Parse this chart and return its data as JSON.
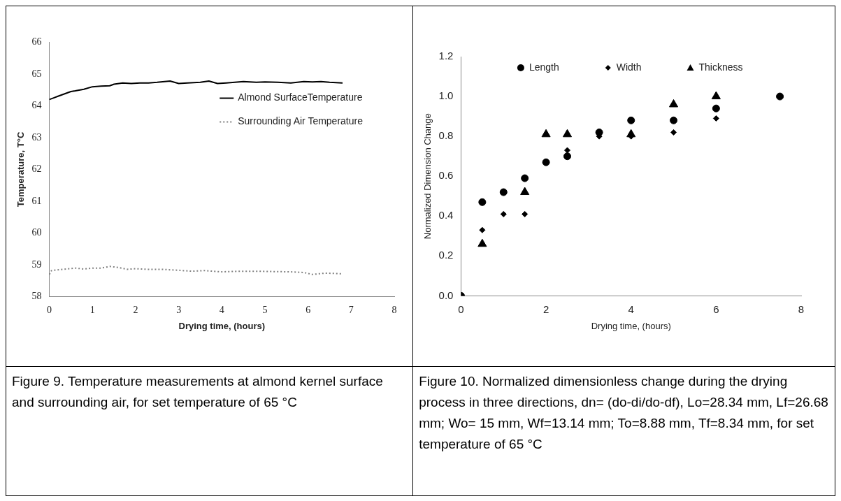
{
  "chart_data": [
    {
      "type": "line",
      "xlabel": "Drying time, (hours)",
      "ylabel": "Temperature, T°C",
      "xlim": [
        0,
        8
      ],
      "xticks": [
        0,
        1,
        2,
        3,
        4,
        5,
        6,
        7,
        8
      ],
      "ylim": [
        58,
        66
      ],
      "yticks": [
        58,
        59,
        60,
        61,
        62,
        63,
        64,
        65,
        66
      ],
      "grid": false,
      "legend": "top right",
      "annotations": [
        "Figure 9. Temperature measurements at almond kernel surface and surrounding air, for set temperature of 65 °C"
      ],
      "series": [
        {
          "name": "Almond SurfaceTemperature",
          "color": "#000000",
          "x": [
            0,
            0.1,
            0.2,
            0.3,
            0.5,
            0.6,
            0.8,
            1.0,
            1.2,
            1.4,
            1.5,
            1.7,
            1.9,
            2.1,
            2.3,
            2.5,
            2.8,
            3.0,
            3.2,
            3.5,
            3.7,
            3.9,
            4.1,
            4.3,
            4.5,
            4.8,
            5.0,
            5.3,
            5.6,
            5.9,
            6.1,
            6.3,
            6.5,
            6.8
          ],
          "values": [
            64.2,
            64.25,
            64.3,
            64.35,
            64.45,
            64.47,
            64.52,
            64.6,
            64.62,
            64.63,
            64.68,
            64.72,
            64.7,
            64.72,
            64.72,
            64.74,
            64.78,
            64.7,
            64.72,
            64.74,
            64.78,
            64.7,
            64.72,
            64.74,
            64.76,
            64.74,
            64.75,
            64.74,
            64.72,
            64.76,
            64.75,
            64.76,
            64.74,
            64.72
          ],
          "line_style": "solid"
        },
        {
          "name": "Surrounding Air Temperature",
          "color": "#808080",
          "x": [
            0,
            0.05,
            0.3,
            0.6,
            0.8,
            1.0,
            1.2,
            1.4,
            1.6,
            1.8,
            2.0,
            2.3,
            2.6,
            3.0,
            3.3,
            3.6,
            4.0,
            4.4,
            4.8,
            5.2,
            5.6,
            5.9,
            6.1,
            6.4,
            6.8
          ],
          "values": [
            58.7,
            58.82,
            58.86,
            58.9,
            58.87,
            58.9,
            58.9,
            58.95,
            58.92,
            58.86,
            58.88,
            58.86,
            58.86,
            58.83,
            58.8,
            58.82,
            58.78,
            58.8,
            58.8,
            58.79,
            58.78,
            58.76,
            58.7,
            58.74,
            58.72
          ],
          "line_style": "dotted"
        }
      ]
    },
    {
      "type": "scatter",
      "xlabel": "Drying time, (hours)",
      "ylabel": "Normalized Dimension Change",
      "xlim": [
        0,
        8
      ],
      "xticks": [
        0,
        2,
        4,
        6,
        8
      ],
      "ylim": [
        0,
        1.2
      ],
      "yticks": [
        {
          "value": 0,
          "label": "0.0"
        },
        0.2,
        0.4,
        0.6,
        0.8,
        {
          "value": 1,
          "label": "1.0"
        },
        1.2
      ],
      "grid": false,
      "legend": "top",
      "annotations": [
        "Figure 10. Normalized dimensionless change during the drying process in three directions, dn= (do-di/do-df), Lo=28.34 mm, Lf=26.68 mm; Wo= 15 mm, Wf=13.14 mm; To=8.88 mm, Tf=8.34 mm, for set temperature of 65 °C"
      ],
      "series": [
        {
          "name": "Length",
          "color": "#000000",
          "marker": "circle",
          "x": [
            0,
            0.5,
            1,
            1.5,
            2,
            2.5,
            3.25,
            4,
            5,
            6,
            7.5
          ],
          "values": [
            0,
            0.47,
            0.52,
            0.59,
            0.67,
            0.7,
            0.82,
            0.88,
            0.88,
            0.94,
            1.0
          ]
        },
        {
          "name": "Width",
          "color": "#000000",
          "marker": "diamond",
          "x": [
            0.5,
            1,
            1.5,
            2.5,
            3.25,
            4,
            5,
            6
          ],
          "values": [
            0.33,
            0.41,
            0.41,
            0.73,
            0.8,
            0.8,
            0.82,
            0.89
          ]
        },
        {
          "name": "Thickness",
          "color": "#000000",
          "marker": "triangle",
          "x": [
            0.5,
            1.5,
            2,
            2.5,
            4,
            5,
            6
          ],
          "values": [
            0.26,
            0.52,
            0.81,
            0.81,
            0.81,
            0.96,
            1.0
          ]
        }
      ]
    }
  ]
}
